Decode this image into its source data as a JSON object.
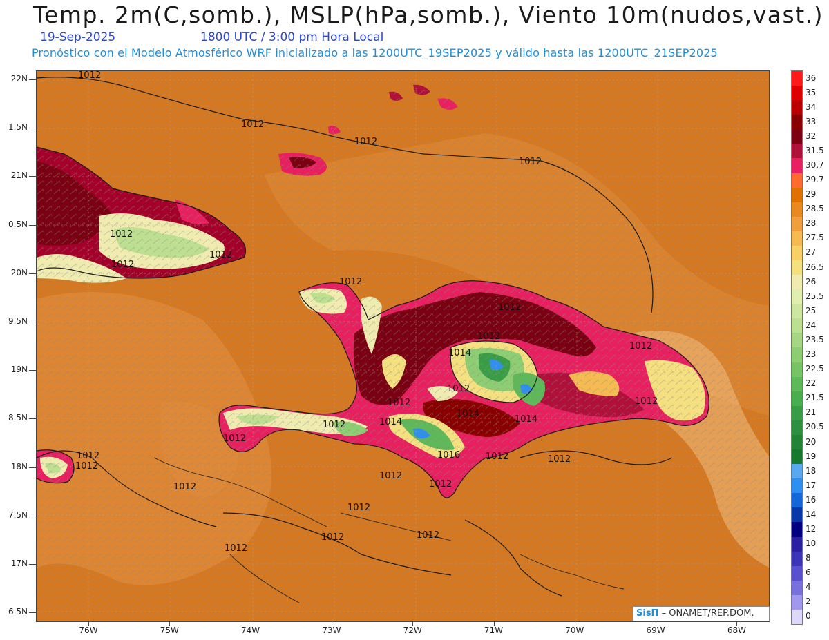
{
  "header": {
    "title": "Temp. 2m(C,somb.), MSLP(hPa,somb.), Viento 10m(nudos,vast.)",
    "date": "19-Sep-2025",
    "valid_time": "1800 UTC / 3:00 pm Hora Local",
    "model_info": "Pronóstico con el Modelo Atmosférico WRF inicializado a las 1200UTC_19SEP2025 y válido hasta las  1200UTC_21SEP2025"
  },
  "axes": {
    "lat_labels": [
      "22N",
      "1.5N",
      "21N",
      "0.5N",
      "20N",
      "9.5N",
      "19N",
      "8.5N",
      "18N",
      "7.5N",
      "17N",
      "6.5N"
    ],
    "lon_labels": [
      "76W",
      "75W",
      "74W",
      "73W",
      "72W",
      "71W",
      "70W",
      "69W",
      "68W"
    ]
  },
  "isobar_labels": [
    {
      "text": "1012"
    },
    {
      "text": "1012"
    },
    {
      "text": "1012"
    },
    {
      "text": "1012"
    },
    {
      "text": "1012"
    },
    {
      "text": "1012"
    },
    {
      "text": "1012"
    },
    {
      "text": "1012"
    },
    {
      "text": "1012"
    },
    {
      "text": "1012"
    },
    {
      "text": "1012"
    },
    {
      "text": "1012"
    },
    {
      "text": "1014"
    },
    {
      "text": "1014"
    },
    {
      "text": "1014"
    },
    {
      "text": "1014"
    },
    {
      "text": "1016"
    },
    {
      "text": "1012"
    },
    {
      "text": "1012"
    },
    {
      "text": "1012"
    },
    {
      "text": "1012"
    },
    {
      "text": "1012"
    },
    {
      "text": "1012"
    },
    {
      "text": "1012"
    },
    {
      "text": "1012"
    },
    {
      "text": "1012"
    },
    {
      "text": "1012"
    },
    {
      "text": "1012"
    },
    {
      "text": "1012"
    },
    {
      "text": "1012"
    },
    {
      "text": "1012"
    },
    {
      "text": "1012"
    }
  ],
  "colorbar": {
    "levels": [
      "36",
      "35",
      "34",
      "33",
      "32",
      "31.5",
      "30.7",
      "29.7",
      "29",
      "28.5",
      "28",
      "27.5",
      "27",
      "26.5",
      "26",
      "25.5",
      "25",
      "24",
      "23.5",
      "23",
      "22.5",
      "22",
      "21.5",
      "21",
      "20.5",
      "20",
      "19",
      "18",
      "17",
      "16",
      "14",
      "12",
      "10",
      "8",
      "6",
      "4",
      "2",
      "0"
    ],
    "colors": [
      "#ff1a1a",
      "#e00000",
      "#b80000",
      "#8a0000",
      "#7a0012",
      "#b0103a",
      "#e82060",
      "#ff6a30",
      "#e07000",
      "#e88a20",
      "#eea040",
      "#f5bb50",
      "#f8d068",
      "#f5e080",
      "#f0ecb0",
      "#e2eeb0",
      "#cfe6a0",
      "#bce090",
      "#a6d683",
      "#8ece72",
      "#76c464",
      "#5eb958",
      "#48ae4e",
      "#389e45",
      "#2e8f3e",
      "#228334",
      "#18782d",
      "#5aa8ee",
      "#2f8ff0",
      "#1566d8",
      "#0838a8",
      "#000080",
      "#2a20a0",
      "#3c34b8",
      "#5850cc",
      "#7a70dc",
      "#a098ec",
      "#ddd8fa"
    ]
  },
  "credit": {
    "brand": "SisΠ",
    "org": "ONAMET/REP.DOM."
  }
}
